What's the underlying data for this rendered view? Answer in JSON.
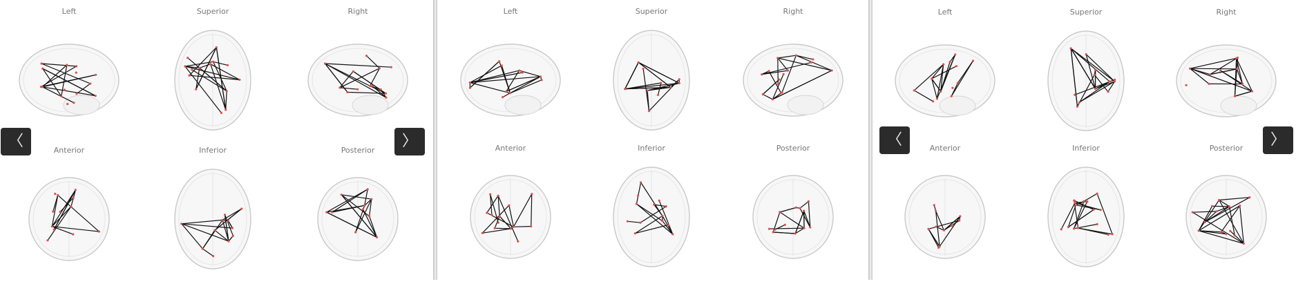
{
  "views": [
    {
      "title": "Left",
      "orientation": "sagittal"
    },
    {
      "title": "Superior",
      "orientation": "axial"
    },
    {
      "title": "Right",
      "orientation": "sagittal"
    },
    {
      "title": "Anterior",
      "orientation": "coronal"
    },
    {
      "title": "Inferior",
      "orientation": "axial"
    },
    {
      "title": "Posterior",
      "orientation": "coronal"
    }
  ],
  "navigation": {
    "prev_glyph": "〈",
    "next_glyph": "〉",
    "prev_icon": "chevron-left-icon",
    "next_icon": "chevron-right-icon"
  },
  "colors": {
    "edge": "#111111",
    "node": "#e0504a",
    "brain_outline": "#c9c9c9",
    "button_bg": "#2b2b2b"
  }
}
